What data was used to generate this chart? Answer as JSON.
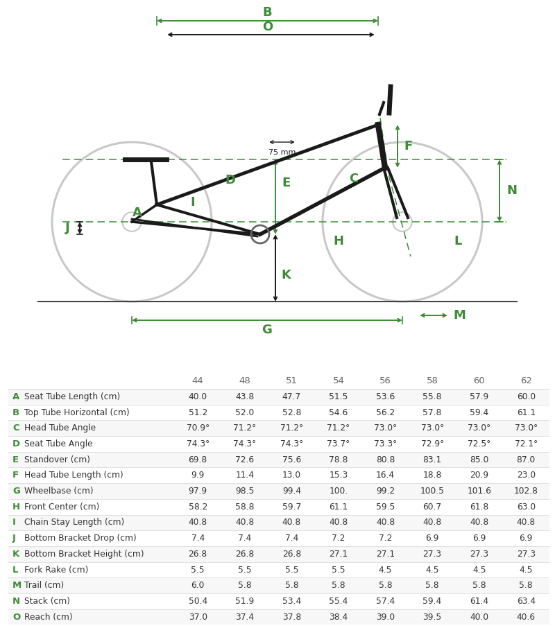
{
  "sizes": [
    "44",
    "48",
    "51",
    "54",
    "56",
    "58",
    "60",
    "62"
  ],
  "rows": [
    {
      "label": "A",
      "name": "Seat Tube Length (cm)",
      "values": [
        "40.0",
        "43.8",
        "47.7",
        "51.5",
        "53.6",
        "55.8",
        "57.9",
        "60.0"
      ]
    },
    {
      "label": "B",
      "name": "Top Tube Horizontal (cm)",
      "values": [
        "51.2",
        "52.0",
        "52.8",
        "54.6",
        "56.2",
        "57.8",
        "59.4",
        "61.1"
      ]
    },
    {
      "label": "C",
      "name": "Head Tube Angle",
      "values": [
        "70.9°",
        "71.2°",
        "71.2°",
        "71.2°",
        "73.0°",
        "73.0°",
        "73.0°",
        "73.0°"
      ]
    },
    {
      "label": "D",
      "name": "Seat Tube Angle",
      "values": [
        "74.3°",
        "74.3°",
        "74.3°",
        "73.7°",
        "73.3°",
        "72.9°",
        "72.5°",
        "72.1°"
      ]
    },
    {
      "label": "E",
      "name": "Standover (cm)",
      "values": [
        "69.8",
        "72.6",
        "75.6",
        "78.8",
        "80.8",
        "83.1",
        "85.0",
        "87.0"
      ]
    },
    {
      "label": "F",
      "name": "Head Tube Length (cm)",
      "values": [
        "9.9",
        "11.4",
        "13.0",
        "15.3",
        "16.4",
        "18.8",
        "20.9",
        "23.0"
      ]
    },
    {
      "label": "G",
      "name": "Wheelbase (cm)",
      "values": [
        "97.9",
        "98.5",
        "99.4",
        "100.",
        "99.2",
        "100.5",
        "101.6",
        "102.8"
      ]
    },
    {
      "label": "H",
      "name": "Front Center (cm)",
      "values": [
        "58.2",
        "58.8",
        "59.7",
        "61.1",
        "59.5",
        "60.7",
        "61.8",
        "63.0"
      ]
    },
    {
      "label": "I",
      "name": "Chain Stay Length (cm)",
      "values": [
        "40.8",
        "40.8",
        "40.8",
        "40.8",
        "40.8",
        "40.8",
        "40.8",
        "40.8"
      ]
    },
    {
      "label": "J",
      "name": "Bottom Bracket Drop (cm)",
      "values": [
        "7.4",
        "7.4",
        "7.4",
        "7.2",
        "7.2",
        "6.9",
        "6.9",
        "6.9"
      ]
    },
    {
      "label": "K",
      "name": "Bottom Bracket Height (cm)",
      "values": [
        "26.8",
        "26.8",
        "26.8",
        "27.1",
        "27.1",
        "27.3",
        "27.3",
        "27.3"
      ]
    },
    {
      "label": "L",
      "name": "Fork Rake (cm)",
      "values": [
        "5.5",
        "5.5",
        "5.5",
        "5.5",
        "4.5",
        "4.5",
        "4.5",
        "4.5"
      ]
    },
    {
      "label": "M",
      "name": "Trail (cm)",
      "values": [
        "6.0",
        "5.8",
        "5.8",
        "5.8",
        "5.8",
        "5.8",
        "5.8",
        "5.8"
      ]
    },
    {
      "label": "N",
      "name": "Stack (cm)",
      "values": [
        "50.4",
        "51.9",
        "53.4",
        "55.4",
        "57.4",
        "59.4",
        "61.4",
        "63.4"
      ]
    },
    {
      "label": "O",
      "name": "Reach (cm)",
      "values": [
        "37.0",
        "37.4",
        "37.8",
        "38.4",
        "39.0",
        "39.5",
        "40.0",
        "40.6"
      ]
    }
  ],
  "green": "#3d8b37",
  "dark": "#1a1a1a",
  "gray": "#888888",
  "light_gray": "#c8c8c8",
  "line_color": "#dddddd",
  "alt_row": "#f7f7f7",
  "text_dark": "#333333",
  "text_gray": "#666666",
  "bg": "#ffffff"
}
